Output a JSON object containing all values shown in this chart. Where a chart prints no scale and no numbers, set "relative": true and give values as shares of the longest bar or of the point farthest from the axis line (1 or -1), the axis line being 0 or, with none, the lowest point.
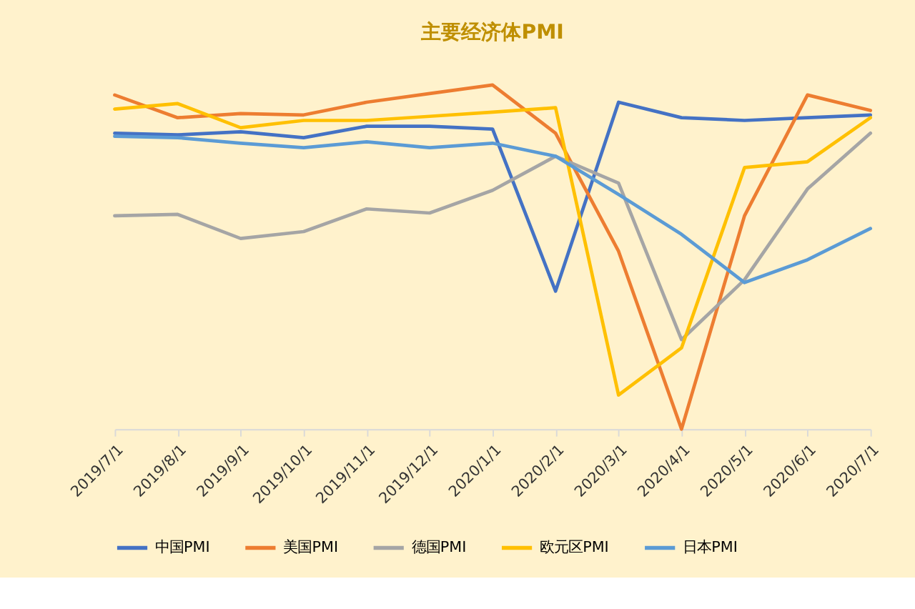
{
  "chart_data": {
    "type": "line",
    "title": "主要经济体PMI",
    "relative": true,
    "legend": "bottom",
    "line_style": "solid",
    "categories": [
      "2019/7/1",
      "2019/8/1",
      "2019/9/1",
      "2019/10/1",
      "2019/11/1",
      "2019/12/1",
      "2020/1/1",
      "2020/2/1",
      "2020/3/1",
      "2020/4/1",
      "2020/5/1",
      "2020/6/1",
      "2020/7/1"
    ],
    "series": [
      {
        "name": "中国PMI",
        "color": "#4472c4",
        "values": [
          0.86,
          0.855,
          0.864,
          0.847,
          0.88,
          0.88,
          0.872,
          0.401,
          0.95,
          0.905,
          0.897,
          0.905,
          0.913
        ]
      },
      {
        "name": "美国PMI",
        "color": "#ed7d31",
        "values": [
          0.971,
          0.905,
          0.917,
          0.913,
          0.95,
          0.975,
          1,
          0.86,
          0.517,
          0,
          0.62,
          0.971,
          0.926
        ]
      },
      {
        "name": "德国PMI",
        "color": "#a5a5a5",
        "values": [
          0.62,
          0.624,
          0.554,
          0.574,
          0.64,
          0.628,
          0.694,
          0.793,
          0.715,
          0.26,
          0.434,
          0.698,
          0.86
        ]
      },
      {
        "name": "欧元区PMI",
        "color": "#ffc000",
        "values": [
          0.93,
          0.946,
          0.876,
          0.897,
          0.897,
          0.909,
          0.921,
          0.934,
          0.099,
          0.236,
          0.76,
          0.777,
          0.905
        ]
      },
      {
        "name": "日本PMI",
        "color": "#5b9bd5",
        "values": [
          0.851,
          0.847,
          0.831,
          0.818,
          0.835,
          0.818,
          0.831,
          0.793,
          0.682,
          0.566,
          0.426,
          0.492,
          0.583
        ]
      }
    ]
  }
}
